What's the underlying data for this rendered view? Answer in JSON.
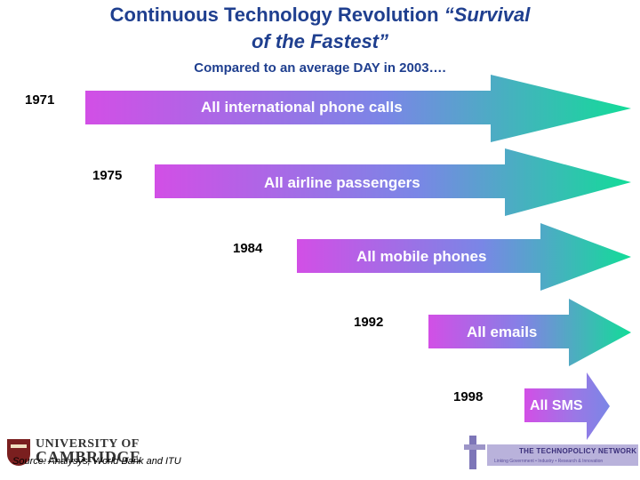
{
  "header": {
    "title_main": "Continuous Technology Revolution",
    "title_quote_part1": "“Survival",
    "title_quote_part2": "of the Fastest”",
    "subtitle": "Compared to an average DAY in 2003…."
  },
  "timeline": [
    {
      "year": "1971",
      "label": "All international phone calls"
    },
    {
      "year": "1975",
      "label": "All airline passengers"
    },
    {
      "year": "1984",
      "label": "All mobile phones"
    },
    {
      "year": "1992",
      "label": "All emails"
    },
    {
      "year": "1998",
      "label": "All SMS"
    }
  ],
  "colors": {
    "title": "#1f3f8f",
    "arrow_start": "#d24fe6",
    "arrow_mid": "#7a86e6",
    "arrow_end": "#12dc98"
  },
  "footer": {
    "source": "Source: Analysys, World Bank and ITU",
    "cambridge_line1": "UNIVERSITY OF",
    "cambridge_line2": "CAMBRIDGE",
    "technopolicy_name": "THE TECHNOPOLICY NETWORK",
    "technopolicy_tagline": "Linking Government • Industry • Research & Innovation"
  }
}
